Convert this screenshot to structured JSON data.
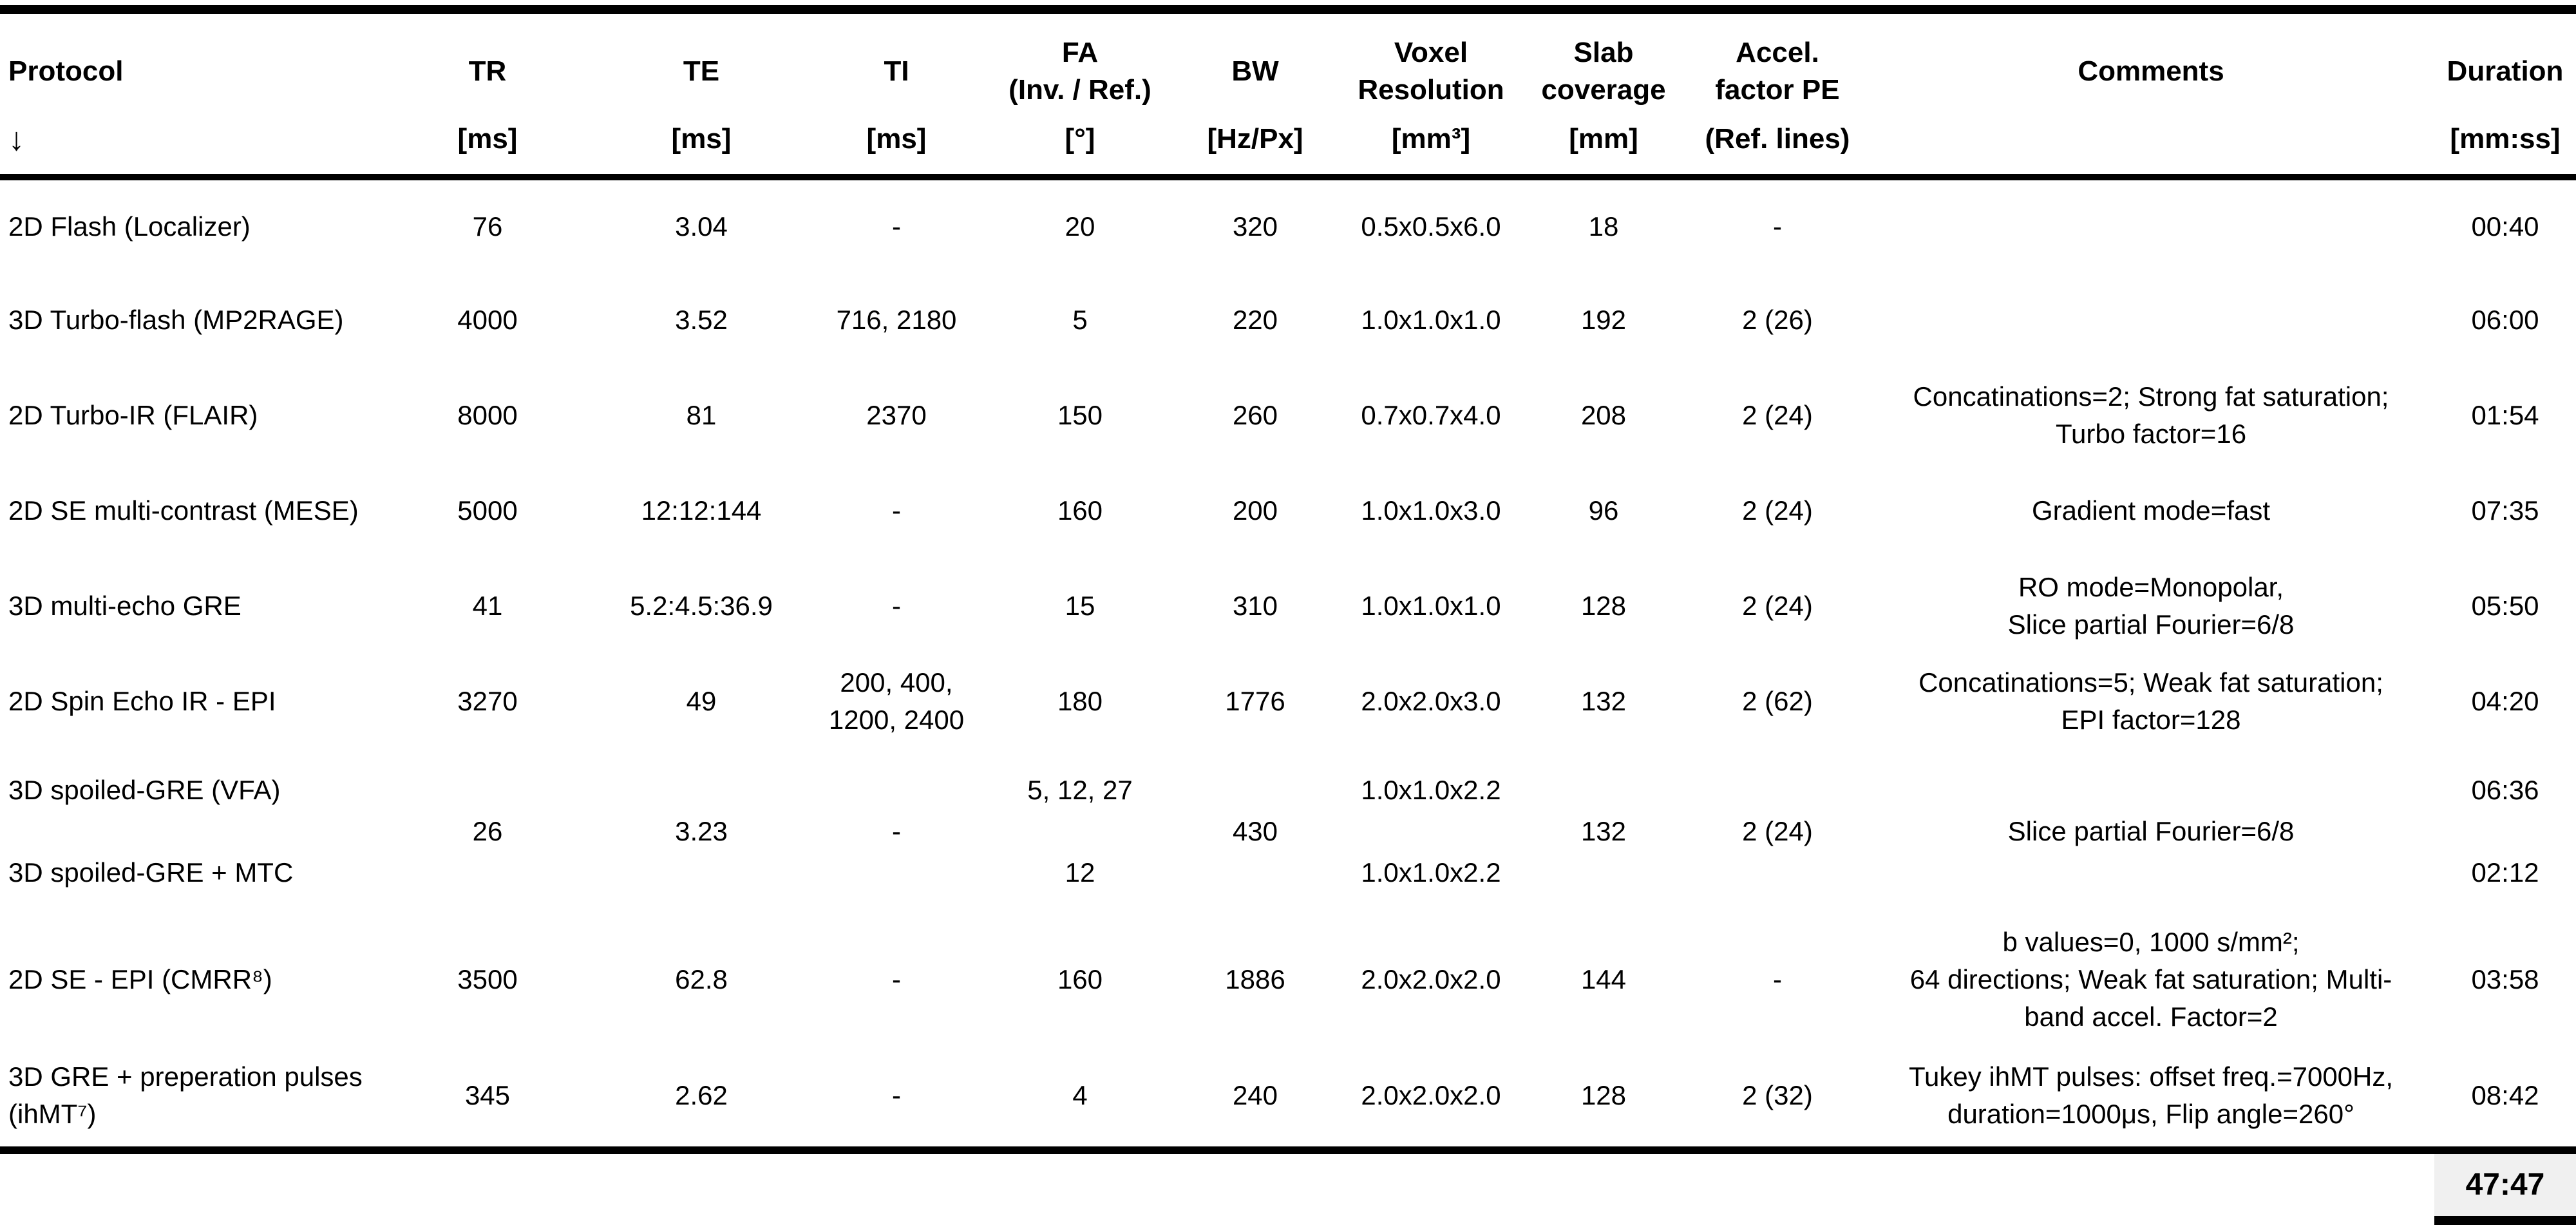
{
  "page": {
    "background": "#ffffff",
    "text_color": "#000000",
    "total_cell_bg": "#f0f0f0"
  },
  "table": {
    "columns": [
      {
        "id": "protocol",
        "title": "Protocol",
        "unit": "↓"
      },
      {
        "id": "tr",
        "title": "TR",
        "unit": "[ms]"
      },
      {
        "id": "te",
        "title": "TE",
        "unit": "[ms]"
      },
      {
        "id": "ti",
        "title": "TI",
        "unit": "[ms]"
      },
      {
        "id": "fa",
        "title": "FA\n(Inv. / Ref.)",
        "unit": "[°]"
      },
      {
        "id": "bw",
        "title": "BW",
        "unit": "[Hz/Px]"
      },
      {
        "id": "voxel",
        "title": "Voxel\nResolution",
        "unit": "[mm³]"
      },
      {
        "id": "slab",
        "title": "Slab\ncoverage",
        "unit": "[mm]"
      },
      {
        "id": "accel",
        "title": "Accel.\nfactor PE",
        "unit": "(Ref. lines)"
      },
      {
        "id": "comments",
        "title": "Comments",
        "unit": ""
      },
      {
        "id": "duration",
        "title": "Duration",
        "unit": "[mm:ss]"
      }
    ],
    "rows": [
      {
        "protocol": "2D Flash (Localizer)",
        "tr": "76",
        "te": "3.04",
        "ti": "-",
        "fa": "20",
        "bw": "320",
        "voxel": "0.5x0.5x6.0",
        "slab": "18",
        "accel": "-",
        "comments": "",
        "duration": "00:40"
      },
      {
        "protocol": "3D Turbo-flash (MP2RAGE)",
        "tr": "4000",
        "te": "3.52",
        "ti": "716, 2180",
        "fa": "5",
        "bw": "220",
        "voxel": "1.0x1.0x1.0",
        "slab": "192",
        "accel": "2 (26)",
        "comments": "",
        "duration": "06:00"
      },
      {
        "protocol": "2D Turbo-IR (FLAIR)",
        "tr": "8000",
        "te": "81",
        "ti": "2370",
        "fa": "150",
        "bw": "260",
        "voxel": "0.7x0.7x4.0",
        "slab": "208",
        "accel": "2 (24)",
        "comments": "Concatinations=2; Strong fat saturation;\nTurbo factor=16",
        "duration": "01:54"
      },
      {
        "protocol": "2D SE multi-contrast (MESE)",
        "tr": "5000",
        "te": "12:12:144",
        "ti": "-",
        "fa": "160",
        "bw": "200",
        "voxel": "1.0x1.0x3.0",
        "slab": "96",
        "accel": "2 (24)",
        "comments": "Gradient mode=fast",
        "duration": "07:35"
      },
      {
        "protocol": "3D multi-echo GRE",
        "tr": "41",
        "te": "5.2:4.5:36.9",
        "ti": "-",
        "fa": "15",
        "bw": "310",
        "voxel": "1.0x1.0x1.0",
        "slab": "128",
        "accel": "2 (24)",
        "comments": "RO mode=Monopolar,\nSlice partial Fourier=6/8",
        "duration": "05:50"
      },
      {
        "protocol": "2D Spin Echo IR - EPI",
        "tr": "3270",
        "te": "49",
        "ti": "200, 400,\n1200, 2400",
        "fa": "180",
        "bw": "1776",
        "voxel": "2.0x2.0x3.0",
        "slab": "132",
        "accel": "2 (62)",
        "comments": "Concatinations=5; Weak fat saturation;\nEPI factor=128",
        "duration": "04:20"
      }
    ],
    "merged_group": {
      "shared": {
        "tr": "26",
        "te": "3.23",
        "ti": "-",
        "bw": "430",
        "slab": "132",
        "accel": "2 (24)",
        "comments": "Slice partial Fourier=6/8"
      },
      "rows": [
        {
          "protocol": "3D spoiled-GRE (VFA)",
          "fa": "5, 12, 27",
          "voxel": "1.0x1.0x2.2",
          "duration": "06:36"
        },
        {
          "protocol": "3D spoiled-GRE + MTC",
          "fa": "12",
          "voxel": "1.0x1.0x2.2",
          "duration": "02:12"
        }
      ]
    },
    "rows_tail": [
      {
        "protocol": "2D SE - EPI (CMRR⁸)",
        "tr": "3500",
        "te": "62.8",
        "ti": "-",
        "fa": "160",
        "bw": "1886",
        "voxel": "2.0x2.0x2.0",
        "slab": "144",
        "accel": "-",
        "comments": "b values=0, 1000 s/mm²;\n64 directions; Weak fat saturation; Multi-\nband accel. Factor=2",
        "duration": "03:58"
      },
      {
        "protocol": "3D GRE + preperation pulses\n(ihMT⁷)",
        "tr": "345",
        "te": "2.62",
        "ti": "-",
        "fa": "4",
        "bw": "240",
        "voxel": "2.0x2.0x2.0",
        "slab": "128",
        "accel": "2 (32)",
        "comments": "Tukey ihMT pulses: offset freq.=7000Hz,\nduration=1000μs, Flip angle=260°",
        "duration": "08:42"
      }
    ],
    "total_duration": "47:47"
  }
}
